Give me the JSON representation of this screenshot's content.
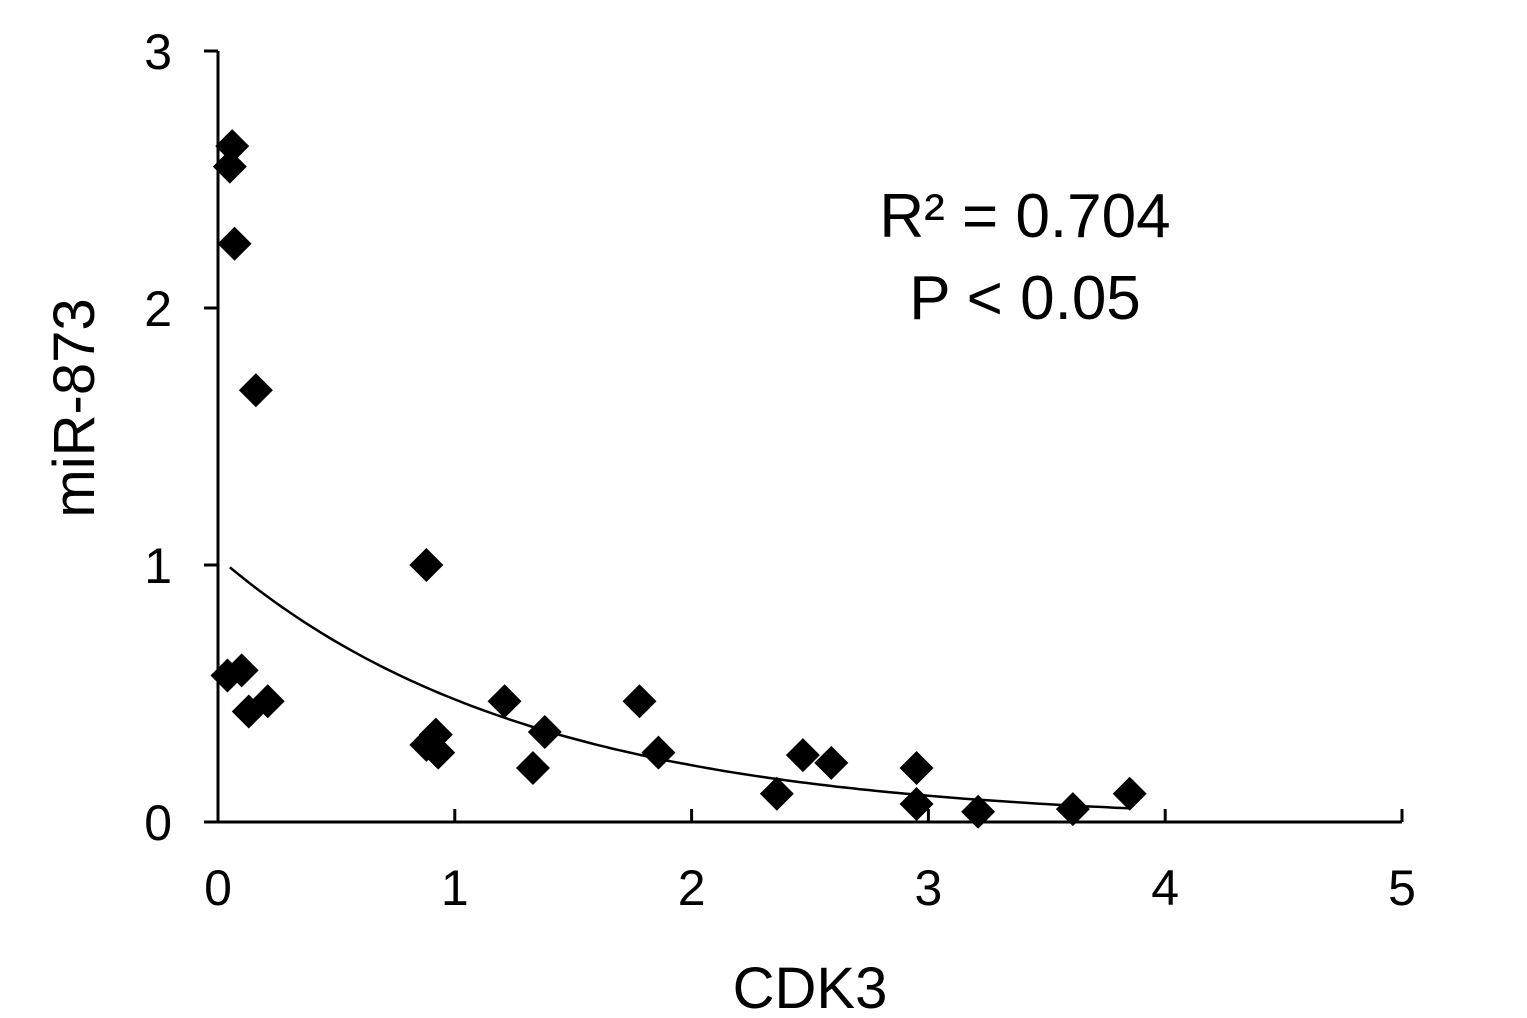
{
  "chart_data": {
    "type": "scatter",
    "xlabel": "CDK3",
    "ylabel": "miR-873",
    "xlim": [
      0,
      5
    ],
    "ylim": [
      0,
      3
    ],
    "xticks": [
      "0",
      "1",
      "2",
      "3",
      "4",
      "5"
    ],
    "yticks": [
      "0",
      "1",
      "2",
      "3"
    ],
    "annotations": [
      "R² = 0.704",
      "P < 0.05"
    ],
    "marker": "diamond",
    "color": "#000000",
    "grid": false,
    "trendline": {
      "type": "exponential",
      "a": 1.03,
      "b": -0.77,
      "x_range": [
        0.05,
        3.85
      ]
    },
    "points": [
      {
        "x": 0.06,
        "y": 2.63
      },
      {
        "x": 0.05,
        "y": 2.55
      },
      {
        "x": 0.07,
        "y": 2.25
      },
      {
        "x": 0.16,
        "y": 1.68
      },
      {
        "x": 0.04,
        "y": 0.57
      },
      {
        "x": 0.1,
        "y": 0.59
      },
      {
        "x": 0.13,
        "y": 0.43
      },
      {
        "x": 0.21,
        "y": 0.47
      },
      {
        "x": 0.88,
        "y": 1.0
      },
      {
        "x": 0.88,
        "y": 0.3
      },
      {
        "x": 0.92,
        "y": 0.34
      },
      {
        "x": 0.93,
        "y": 0.27
      },
      {
        "x": 1.21,
        "y": 0.47
      },
      {
        "x": 1.33,
        "y": 0.21
      },
      {
        "x": 1.38,
        "y": 0.35
      },
      {
        "x": 1.78,
        "y": 0.47
      },
      {
        "x": 1.86,
        "y": 0.27
      },
      {
        "x": 2.36,
        "y": 0.11
      },
      {
        "x": 2.47,
        "y": 0.26
      },
      {
        "x": 2.59,
        "y": 0.23
      },
      {
        "x": 2.95,
        "y": 0.21
      },
      {
        "x": 2.95,
        "y": 0.07
      },
      {
        "x": 3.21,
        "y": 0.04
      },
      {
        "x": 3.61,
        "y": 0.05
      },
      {
        "x": 3.85,
        "y": 0.11
      }
    ]
  }
}
